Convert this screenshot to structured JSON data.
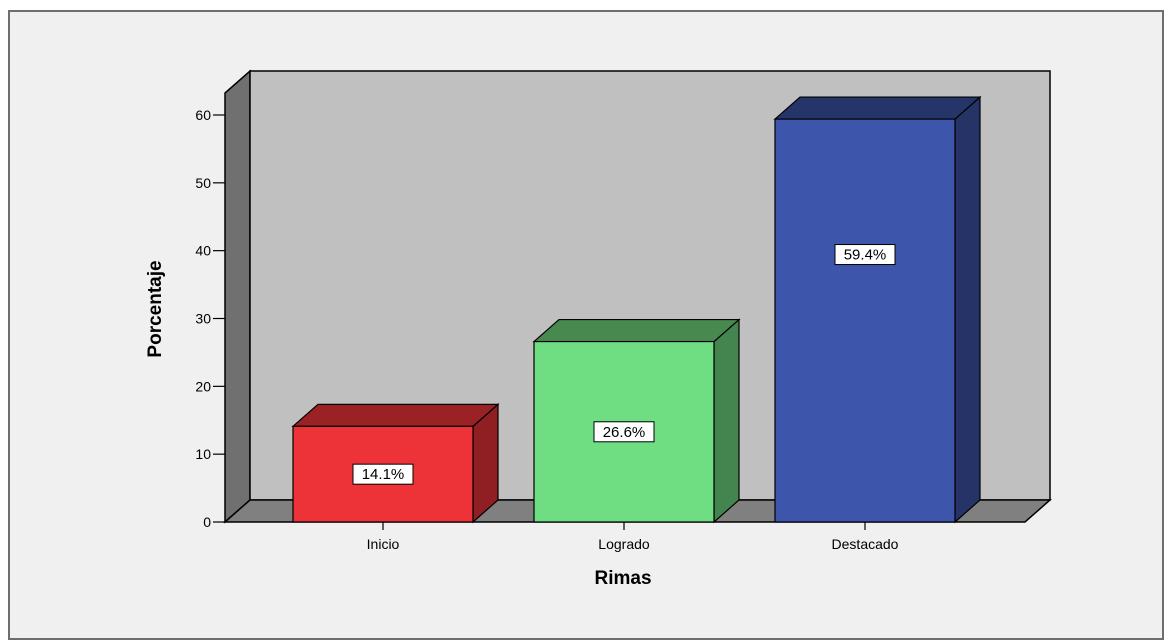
{
  "chart_data": {
    "type": "bar",
    "categories": [
      "Inicio",
      "Logrado",
      "Destacado"
    ],
    "values": [
      14.1,
      26.6,
      59.4
    ],
    "data_labels": [
      "14.1%",
      "26.6%",
      "59.4%"
    ],
    "xlabel": "Rimas",
    "ylabel": "Porcentaje",
    "ylim": [
      0,
      60
    ],
    "yticks": [
      0,
      10,
      20,
      30,
      40,
      50,
      60
    ],
    "grid": false,
    "three_d": true,
    "colors": {
      "bars": [
        "#ee3338",
        "#6fdd82",
        "#3d55ab"
      ],
      "bars_side": [
        "#8f1f22",
        "#43844f",
        "#253367"
      ],
      "bars_top": [
        "#9a2124",
        "#47894f",
        "#263569"
      ],
      "back_wall": "#c0c0c0",
      "side_wall": "#707070",
      "floor": "#808080"
    }
  }
}
